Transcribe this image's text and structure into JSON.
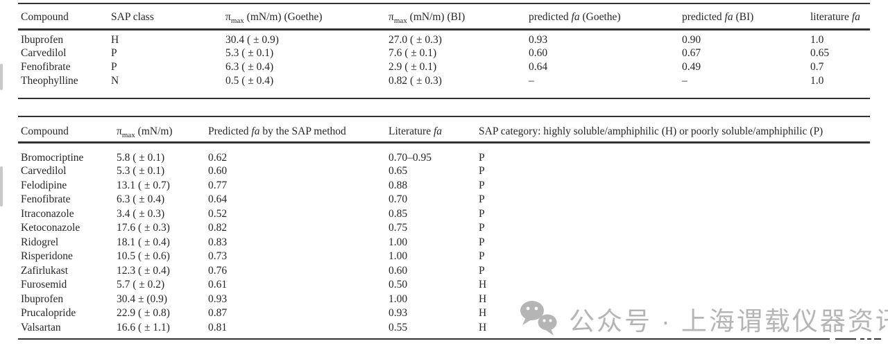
{
  "page": {
    "background": "#ffffff",
    "text_color": "#262626",
    "rule_color": "#333333",
    "watermark_color": "#b5b5b5"
  },
  "table1": {
    "columns": [
      "Compound",
      "SAP class",
      "π_{max} (mN/m) (Goethe)",
      "π_{max} (mN/m) (BI)",
      "predicted *fa* (Goethe)",
      "predicted *fa* (BI)",
      "literature *fa*"
    ],
    "rows": [
      [
        "Ibuprofen",
        "H",
        "30.4 ( ± 0.9)",
        "27.0 ( ± 0.3)",
        "0.93",
        "0.90",
        "1.0"
      ],
      [
        "Carvedilol",
        "P",
        "5.3 ( ± 0.1)",
        "7.6 ( ± 0.1)",
        "0.60",
        "0.67",
        "0.65"
      ],
      [
        "Fenofibrate",
        "P",
        "6.3 ( ± 0.4)",
        "2.9 ( ± 0.1)",
        "0.64",
        "0.49",
        "0.7"
      ],
      [
        "Theophylline",
        "N",
        "0.5 ( ± 0.4)",
        "0.82 ( ± 0.3)",
        "–",
        "–",
        "1.0"
      ]
    ]
  },
  "table2": {
    "columns": [
      "Compound",
      "π_{max} (mN/m)",
      "Predicted *fa* by the SAP method",
      "Literature *fa*",
      "SAP category: highly soluble/amphiphilic (H) or poorly soluble/amphiphilic (P)"
    ],
    "rows": [
      [
        "Bromocriptine",
        "5.8 ( ± 0.1)",
        "0.62",
        "0.70–0.95",
        "P"
      ],
      [
        "Carvedilol",
        "5.3 ( ± 0.1)",
        "0.60",
        "0.65",
        "P"
      ],
      [
        "Felodipine",
        "13.1 ( ± 0.7)",
        "0.77",
        "0.88",
        "P"
      ],
      [
        "Fenofibrate",
        "6.3 ( ± 0.4)",
        "0.64",
        "0.70",
        "P"
      ],
      [
        "Itraconazole",
        "3.4 ( ± 0.3)",
        "0.52",
        "0.85",
        "P"
      ],
      [
        "Ketoconazole",
        "17.6 ( ± 0.3)",
        "0.82",
        "0.75",
        "P"
      ],
      [
        "Ridogrel",
        "18.1 ( ± 0.4)",
        "0.83",
        "1.00",
        "P"
      ],
      [
        "Risperidone",
        "10.5 ( ± 0.6)",
        "0.73",
        "1.00",
        "P"
      ],
      [
        "Zafirlukast",
        "12.3 ( ± 0.4)",
        "0.76",
        "0.60",
        "P"
      ],
      [
        "Furosemid",
        "5.7 ( ± 0.2)",
        "0.61",
        "0.50",
        "H"
      ],
      [
        "Ibuprofen",
        "30.4 ± (0.9)",
        "0.93",
        "1.00",
        "H"
      ],
      [
        "Prucalopride",
        "22.9 ( ± 0.8)",
        "0.87",
        "0.93",
        "H"
      ],
      [
        "Valsartan",
        "16.6 ( ± 1.1)",
        "0.81",
        "0.55",
        "H"
      ]
    ]
  },
  "watermark": {
    "icon": "wechat-icon",
    "text": "公众号 · 上海谓载仪器资讯"
  }
}
